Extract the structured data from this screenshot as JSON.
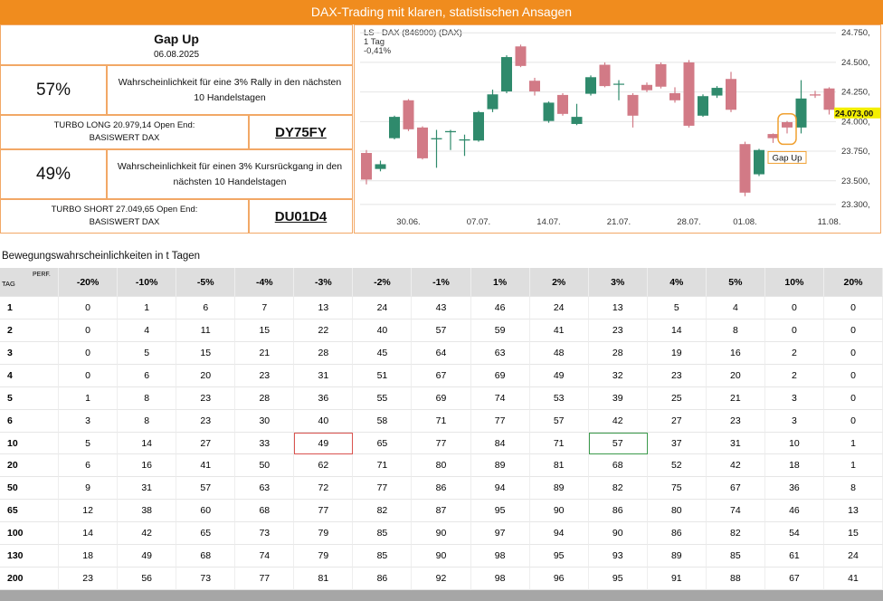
{
  "header": {
    "title": "DAX-Trading mit klaren, statistischen Ansagen"
  },
  "signal": {
    "title": "Gap Up",
    "date": "06.08.2025",
    "long": {
      "probability": "57%",
      "text": [
        "Wahrscheinlichkeit für eine 3% Rally in den nächsten",
        "10 Handelstagen"
      ],
      "product": [
        "TURBO LONG 20.979,14 Open End:",
        "BASISWERT DAX"
      ],
      "code": "DY75FY"
    },
    "short": {
      "probability": "49%",
      "text": [
        "Wahrscheinlichkeit für einen 3% Kursrückgang in den",
        "nächsten 10 Handelstagen"
      ],
      "product": [
        "TURBO SHORT 27.049,65 Open End:",
        "BASISWERT DAX"
      ],
      "code": "DU01D4"
    }
  },
  "chart_data": {
    "type": "candlestick",
    "title": "LS - DAX (846900) (DAX)",
    "subtitle": [
      "1 Tag",
      "-0,41%"
    ],
    "categories": [
      null,
      null,
      null,
      "30.06.",
      null,
      null,
      null,
      null,
      "07.07.",
      null,
      null,
      null,
      null,
      "14.07.",
      null,
      null,
      null,
      null,
      "21.07.",
      null,
      null,
      null,
      null,
      "28.07.",
      null,
      null,
      null,
      "01.08.",
      null,
      null,
      null,
      null,
      null,
      "11.08."
    ],
    "open": [
      23735,
      23600,
      23860,
      24180,
      23950,
      23850,
      23910,
      23840,
      23840,
      24105,
      24255,
      24635,
      24345,
      24005,
      24225,
      23980,
      24235,
      24480,
      24315,
      24225,
      24310,
      24485,
      24240,
      24500,
      24050,
      24220,
      24360,
      23810,
      23555,
      23895,
      23995,
      23950,
      24230,
      24280
    ],
    "high": [
      23760,
      23670,
      24050,
      24190,
      23960,
      23930,
      23930,
      23890,
      24090,
      24270,
      24560,
      24650,
      24370,
      24170,
      24240,
      24150,
      24390,
      24500,
      24350,
      24240,
      24330,
      24500,
      24290,
      24520,
      24230,
      24300,
      24420,
      23830,
      23770,
      23900,
      24005,
      24350,
      24260,
      24290
    ],
    "low": [
      23470,
      23580,
      23850,
      23920,
      23680,
      23610,
      23760,
      23710,
      23830,
      24080,
      24240,
      24460,
      24220,
      23990,
      24050,
      23970,
      24220,
      24290,
      24180,
      23950,
      24250,
      24280,
      24160,
      23950,
      24040,
      24200,
      24080,
      23370,
      23540,
      23820,
      23900,
      23900,
      24200,
      24060
    ],
    "close": [
      23510,
      23640,
      24040,
      23935,
      23690,
      23860,
      23920,
      23850,
      24080,
      24230,
      24545,
      24470,
      24255,
      24160,
      24065,
      24040,
      24375,
      24300,
      24320,
      24050,
      24265,
      24295,
      24180,
      23965,
      24215,
      24285,
      24100,
      23400,
      23760,
      23860,
      23950,
      24195,
      24220,
      24100
    ],
    "up_color": "#2f8a6c",
    "down_color": "#d27a86",
    "ylim": [
      23070,
      24790
    ],
    "yticks": [
      {
        "value": 24750,
        "label": "24.750,"
      },
      {
        "value": 24500,
        "label": "24.500,"
      },
      {
        "value": 24250,
        "label": "24.250,"
      },
      {
        "value": 24000,
        "label": "24.000,"
      },
      {
        "value": 23750,
        "label": "23.750,"
      },
      {
        "value": 23500,
        "label": "23.500,"
      },
      {
        "value": 23300,
        "label": "23.300,"
      }
    ],
    "last_price": {
      "value": 24073,
      "label": "24.073,00"
    },
    "grid": true,
    "annotation": {
      "text": "Gap Up",
      "index": 30
    }
  },
  "table": {
    "title": "Bewegungswahrscheinlichkeiten in t Tagen",
    "corner": [
      "TAG",
      "PERF."
    ],
    "columns": [
      "-20%",
      "-10%",
      "-5%",
      "-4%",
      "-3%",
      "-2%",
      "-1%",
      "1%",
      "2%",
      "3%",
      "4%",
      "5%",
      "10%",
      "20%"
    ],
    "rows": [
      {
        "label": "1",
        "values": [
          0,
          1,
          6,
          7,
          13,
          24,
          43,
          46,
          24,
          13,
          5,
          4,
          0,
          0
        ]
      },
      {
        "label": "2",
        "values": [
          0,
          4,
          11,
          15,
          22,
          40,
          57,
          59,
          41,
          23,
          14,
          8,
          0,
          0
        ]
      },
      {
        "label": "3",
        "values": [
          0,
          5,
          15,
          21,
          28,
          45,
          64,
          63,
          48,
          28,
          19,
          16,
          2,
          0
        ]
      },
      {
        "label": "4",
        "values": [
          0,
          6,
          20,
          23,
          31,
          51,
          67,
          69,
          49,
          32,
          23,
          20,
          2,
          0
        ]
      },
      {
        "label": "5",
        "values": [
          1,
          8,
          23,
          28,
          36,
          55,
          69,
          74,
          53,
          39,
          25,
          21,
          3,
          0
        ]
      },
      {
        "label": "6",
        "values": [
          3,
          8,
          23,
          30,
          40,
          58,
          71,
          77,
          57,
          42,
          27,
          23,
          3,
          0
        ]
      },
      {
        "label": "10",
        "values": [
          5,
          14,
          27,
          33,
          49,
          65,
          77,
          84,
          71,
          57,
          37,
          31,
          10,
          1
        ]
      },
      {
        "label": "20",
        "values": [
          6,
          16,
          41,
          50,
          62,
          71,
          80,
          89,
          81,
          68,
          52,
          42,
          18,
          1
        ]
      },
      {
        "label": "50",
        "values": [
          9,
          31,
          57,
          63,
          72,
          77,
          86,
          94,
          89,
          82,
          75,
          67,
          36,
          8
        ]
      },
      {
        "label": "65",
        "values": [
          12,
          38,
          60,
          68,
          77,
          82,
          87,
          95,
          90,
          86,
          80,
          74,
          46,
          13
        ]
      },
      {
        "label": "100",
        "values": [
          14,
          42,
          65,
          73,
          79,
          85,
          90,
          97,
          94,
          90,
          86,
          82,
          54,
          15
        ]
      },
      {
        "label": "130",
        "values": [
          18,
          49,
          68,
          74,
          79,
          85,
          90,
          98,
          95,
          93,
          89,
          85,
          61,
          24
        ]
      },
      {
        "label": "200",
        "values": [
          23,
          56,
          73,
          77,
          81,
          86,
          92,
          98,
          96,
          95,
          91,
          88,
          67,
          41
        ]
      }
    ],
    "highlights": [
      {
        "row": 6,
        "column": 4,
        "color": "#d9534f"
      },
      {
        "row": 6,
        "column": 9,
        "color": "#3c9a4c"
      }
    ]
  }
}
